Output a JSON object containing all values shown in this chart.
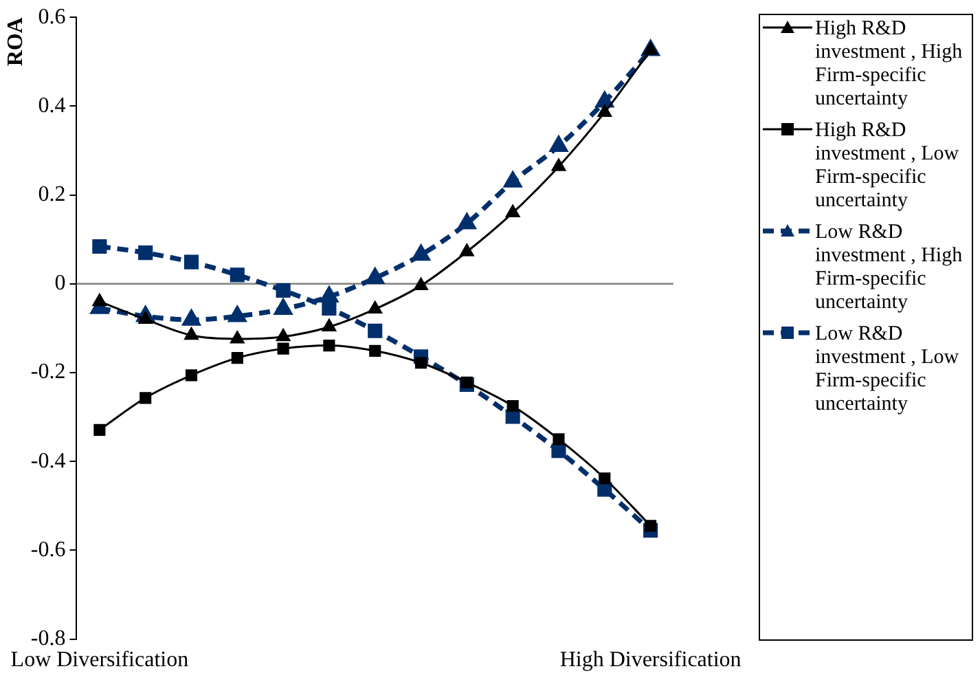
{
  "chart_data": {
    "type": "line",
    "ylabel": "ROA",
    "categories": [
      "Low Diversification",
      null,
      null,
      null,
      null,
      null,
      null,
      null,
      null,
      null,
      null,
      null,
      "High Diversification"
    ],
    "series": [
      {
        "name": "High R&D investment , High Firm-specific uncertainty",
        "color": "#000000",
        "marker": "triangle",
        "line_style": "solid",
        "values": [
          -0.04,
          -0.08,
          -0.116,
          -0.124,
          -0.119,
          -0.097,
          -0.057,
          -0.004,
          0.072,
          0.16,
          0.264,
          0.386,
          0.526
        ]
      },
      {
        "name": "High R&D investment , Low Firm-specific uncertainty",
        "color": "#000000",
        "marker": "square",
        "line_style": "solid",
        "values": [
          -0.329,
          -0.257,
          -0.206,
          -0.167,
          -0.146,
          -0.139,
          -0.151,
          -0.178,
          -0.222,
          -0.275,
          -0.35,
          -0.438,
          -0.545
        ]
      },
      {
        "name": "Low R&D investment , High Firm-specific uncertainty",
        "color": "#002f6c",
        "marker": "triangle",
        "line_style": "dashed",
        "values": [
          -0.055,
          -0.073,
          -0.081,
          -0.073,
          -0.057,
          -0.029,
          0.013,
          0.065,
          0.136,
          0.23,
          0.31,
          0.41,
          0.526
        ]
      },
      {
        "name": "Low R&D investment , Low Firm-specific uncertainty",
        "color": "#002f6c",
        "marker": "square",
        "line_style": "dashed",
        "values": [
          0.084,
          0.07,
          0.049,
          0.02,
          -0.015,
          -0.055,
          -0.106,
          -0.164,
          -0.227,
          -0.299,
          -0.376,
          -0.463,
          -0.555
        ]
      }
    ],
    "ylim": [
      -0.8,
      0.6
    ],
    "yticks": [
      -0.8,
      -0.6,
      -0.4,
      -0.2,
      0,
      0.2,
      0.4,
      0.6
    ],
    "ref_lines": [
      {
        "axis": "y",
        "value": 0,
        "color": "#808080"
      }
    ],
    "grid": false,
    "legend": "right"
  }
}
